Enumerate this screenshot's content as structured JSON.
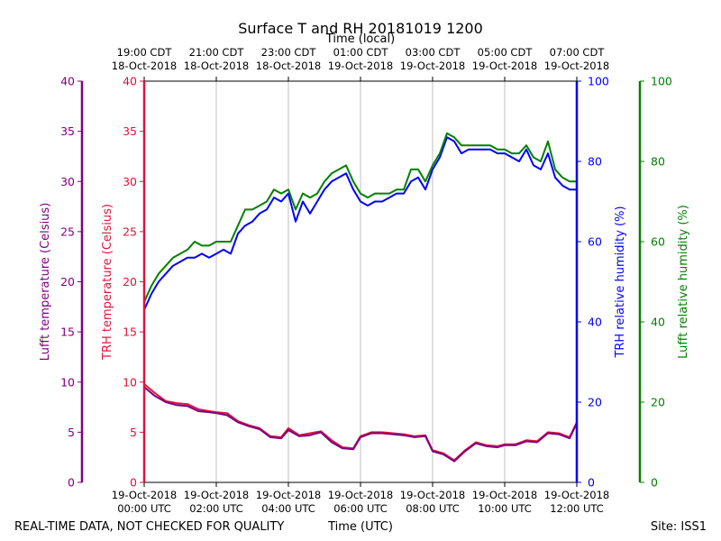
{
  "chart_data": {
    "type": "line",
    "title": "Surface T and RH 20181019 1200",
    "top_xlabel": "Time (local)",
    "xlabel": "Time (UTC)",
    "footer_left": "REAL-TIME DATA, NOT CHECKED FOR QUALITY",
    "footer_right": "Site: ISS1",
    "x_unit": "hours since 19-Oct-2018 00:00 UTC",
    "xlim": [
      0,
      12
    ],
    "bottom_ticks": [
      {
        "x": 0,
        "line1": "19-Oct-2018",
        "line2": "00:00 UTC"
      },
      {
        "x": 2,
        "line1": "19-Oct-2018",
        "line2": "02:00 UTC"
      },
      {
        "x": 4,
        "line1": "19-Oct-2018",
        "line2": "04:00 UTC"
      },
      {
        "x": 6,
        "line1": "19-Oct-2018",
        "line2": "06:00 UTC"
      },
      {
        "x": 8,
        "line1": "19-Oct-2018",
        "line2": "08:00 UTC"
      },
      {
        "x": 10,
        "line1": "19-Oct-2018",
        "line2": "10:00 UTC"
      },
      {
        "x": 12,
        "line1": "19-Oct-2018",
        "line2": "12:00 UTC"
      }
    ],
    "top_ticks": [
      {
        "x": 0,
        "line1": "19:00 CDT",
        "line2": "18-Oct-2018"
      },
      {
        "x": 2,
        "line1": "21:00 CDT",
        "line2": "18-Oct-2018"
      },
      {
        "x": 4,
        "line1": "23:00 CDT",
        "line2": "18-Oct-2018"
      },
      {
        "x": 6,
        "line1": "01:00 CDT",
        "line2": "19-Oct-2018"
      },
      {
        "x": 8,
        "line1": "03:00 CDT",
        "line2": "19-Oct-2018"
      },
      {
        "x": 10,
        "line1": "05:00 CDT",
        "line2": "19-Oct-2018"
      },
      {
        "x": 12,
        "line1": "07:00 CDT",
        "line2": "19-Oct-2018"
      }
    ],
    "axes": [
      {
        "id": "lufft_t",
        "label": "Lufft temperature (Celsius)",
        "color": "#800080",
        "ylim": [
          0,
          40
        ],
        "ticks": [
          0,
          5,
          10,
          15,
          20,
          25,
          30,
          35,
          40
        ]
      },
      {
        "id": "trh_t",
        "label": "TRH temperature (Celsius)",
        "color": "#dc143c",
        "ylim": [
          0,
          40
        ],
        "ticks": [
          0,
          5,
          10,
          15,
          20,
          25,
          30,
          35,
          40
        ]
      },
      {
        "id": "trh_rh",
        "label": "TRH relative humidity (%)",
        "color": "#0000ff",
        "ylim": [
          0,
          100
        ],
        "ticks": [
          0,
          20,
          40,
          60,
          80,
          100
        ]
      },
      {
        "id": "lufft_rh",
        "label": "Lufft relative humidity (%)",
        "color": "#008000",
        "ylim": [
          0,
          100
        ],
        "ticks": [
          0,
          20,
          40,
          60,
          80,
          100
        ]
      }
    ],
    "series": [
      {
        "name": "TRH temperature",
        "axis": "trh_t",
        "color": "#dc143c",
        "x": [
          0,
          0.3,
          0.6,
          0.9,
          1.2,
          1.5,
          1.8,
          2.0,
          2.3,
          2.6,
          2.9,
          3.2,
          3.5,
          3.8,
          4.0,
          4.3,
          4.6,
          4.9,
          5.2,
          5.5,
          5.8,
          6.0,
          6.3,
          6.6,
          6.9,
          7.2,
          7.5,
          7.8,
          8.0,
          8.3,
          8.6,
          8.9,
          9.2,
          9.5,
          9.8,
          10.0,
          10.3,
          10.6,
          10.9,
          11.2,
          11.5,
          11.8,
          12.0
        ],
        "values": [
          9.8,
          8.9,
          8.1,
          7.9,
          7.8,
          7.3,
          7.1,
          7.0,
          6.9,
          6.1,
          5.7,
          5.4,
          4.6,
          4.5,
          5.4,
          4.7,
          4.9,
          5.1,
          4.2,
          3.5,
          3.4,
          4.6,
          5.0,
          5.0,
          4.9,
          4.8,
          4.6,
          4.7,
          3.2,
          2.9,
          2.2,
          3.2,
          4.0,
          3.7,
          3.6,
          3.8,
          3.8,
          4.2,
          4.1,
          5.0,
          4.9,
          4.5,
          6.0
        ]
      },
      {
        "name": "Lufft temperature",
        "axis": "lufft_t",
        "color": "#800080",
        "x": [
          0,
          0.3,
          0.6,
          0.9,
          1.2,
          1.5,
          1.8,
          2.0,
          2.3,
          2.6,
          2.9,
          3.2,
          3.5,
          3.8,
          4.0,
          4.3,
          4.6,
          4.9,
          5.2,
          5.5,
          5.8,
          6.0,
          6.3,
          6.6,
          6.9,
          7.2,
          7.5,
          7.8,
          8.0,
          8.3,
          8.6,
          8.9,
          9.2,
          9.5,
          9.8,
          10.0,
          10.3,
          10.6,
          10.9,
          11.2,
          11.5,
          11.8,
          12.0
        ],
        "values": [
          9.5,
          8.6,
          8.0,
          7.7,
          7.6,
          7.1,
          7.0,
          6.9,
          6.7,
          6.0,
          5.6,
          5.3,
          4.5,
          4.4,
          5.2,
          4.6,
          4.7,
          5.0,
          4.0,
          3.4,
          3.3,
          4.5,
          4.9,
          4.9,
          4.8,
          4.7,
          4.5,
          4.6,
          3.1,
          2.8,
          2.1,
          3.1,
          3.9,
          3.6,
          3.5,
          3.7,
          3.7,
          4.1,
          4.0,
          4.9,
          4.8,
          4.4,
          5.9
        ]
      },
      {
        "name": "TRH relative humidity",
        "axis": "trh_rh",
        "color": "#0000ff",
        "x": [
          0,
          0.2,
          0.4,
          0.6,
          0.8,
          1.0,
          1.2,
          1.4,
          1.6,
          1.8,
          2.0,
          2.2,
          2.4,
          2.6,
          2.8,
          3.0,
          3.2,
          3.4,
          3.6,
          3.8,
          4.0,
          4.2,
          4.4,
          4.6,
          4.8,
          5.0,
          5.2,
          5.4,
          5.6,
          5.8,
          6.0,
          6.2,
          6.4,
          6.6,
          6.8,
          7.0,
          7.2,
          7.4,
          7.6,
          7.8,
          8.0,
          8.2,
          8.4,
          8.6,
          8.8,
          9.0,
          9.2,
          9.4,
          9.6,
          9.8,
          10.0,
          10.2,
          10.4,
          10.6,
          10.8,
          11.0,
          11.2,
          11.4,
          11.6,
          11.8,
          12.0
        ],
        "values": [
          43,
          47,
          50,
          52,
          54,
          55,
          56,
          56,
          57,
          56,
          57,
          58,
          57,
          62,
          64,
          65,
          67,
          68,
          71,
          70,
          72,
          65,
          70,
          67,
          70,
          73,
          75,
          76,
          77,
          73,
          70,
          69,
          70,
          70,
          71,
          72,
          72,
          75,
          76,
          73,
          78,
          81,
          86,
          85,
          82,
          83,
          83,
          83,
          83,
          82,
          82,
          81,
          80,
          83,
          79,
          78,
          82,
          76,
          74,
          73,
          73
        ]
      },
      {
        "name": "Lufft relative humidity",
        "axis": "lufft_rh",
        "color": "#008000",
        "x": [
          0,
          0.2,
          0.4,
          0.6,
          0.8,
          1.0,
          1.2,
          1.4,
          1.6,
          1.8,
          2.0,
          2.2,
          2.4,
          2.6,
          2.8,
          3.0,
          3.2,
          3.4,
          3.6,
          3.8,
          4.0,
          4.2,
          4.4,
          4.6,
          4.8,
          5.0,
          5.2,
          5.4,
          5.6,
          5.8,
          6.0,
          6.2,
          6.4,
          6.6,
          6.8,
          7.0,
          7.2,
          7.4,
          7.6,
          7.8,
          8.0,
          8.2,
          8.4,
          8.6,
          8.8,
          9.0,
          9.2,
          9.4,
          9.6,
          9.8,
          10.0,
          10.2,
          10.4,
          10.6,
          10.8,
          11.0,
          11.2,
          11.4,
          11.6,
          11.8,
          12.0
        ],
        "values": [
          45,
          49,
          52,
          54,
          56,
          57,
          58,
          60,
          59,
          59,
          60,
          60,
          60,
          64,
          68,
          68,
          69,
          70,
          73,
          72,
          73,
          68,
          72,
          71,
          72,
          75,
          77,
          78,
          79,
          75,
          72,
          71,
          72,
          72,
          72,
          73,
          73,
          78,
          78,
          75,
          79,
          82,
          87,
          86,
          84,
          84,
          84,
          84,
          84,
          83,
          83,
          82,
          82,
          84,
          81,
          80,
          85,
          78,
          76,
          75,
          75
        ]
      }
    ]
  }
}
